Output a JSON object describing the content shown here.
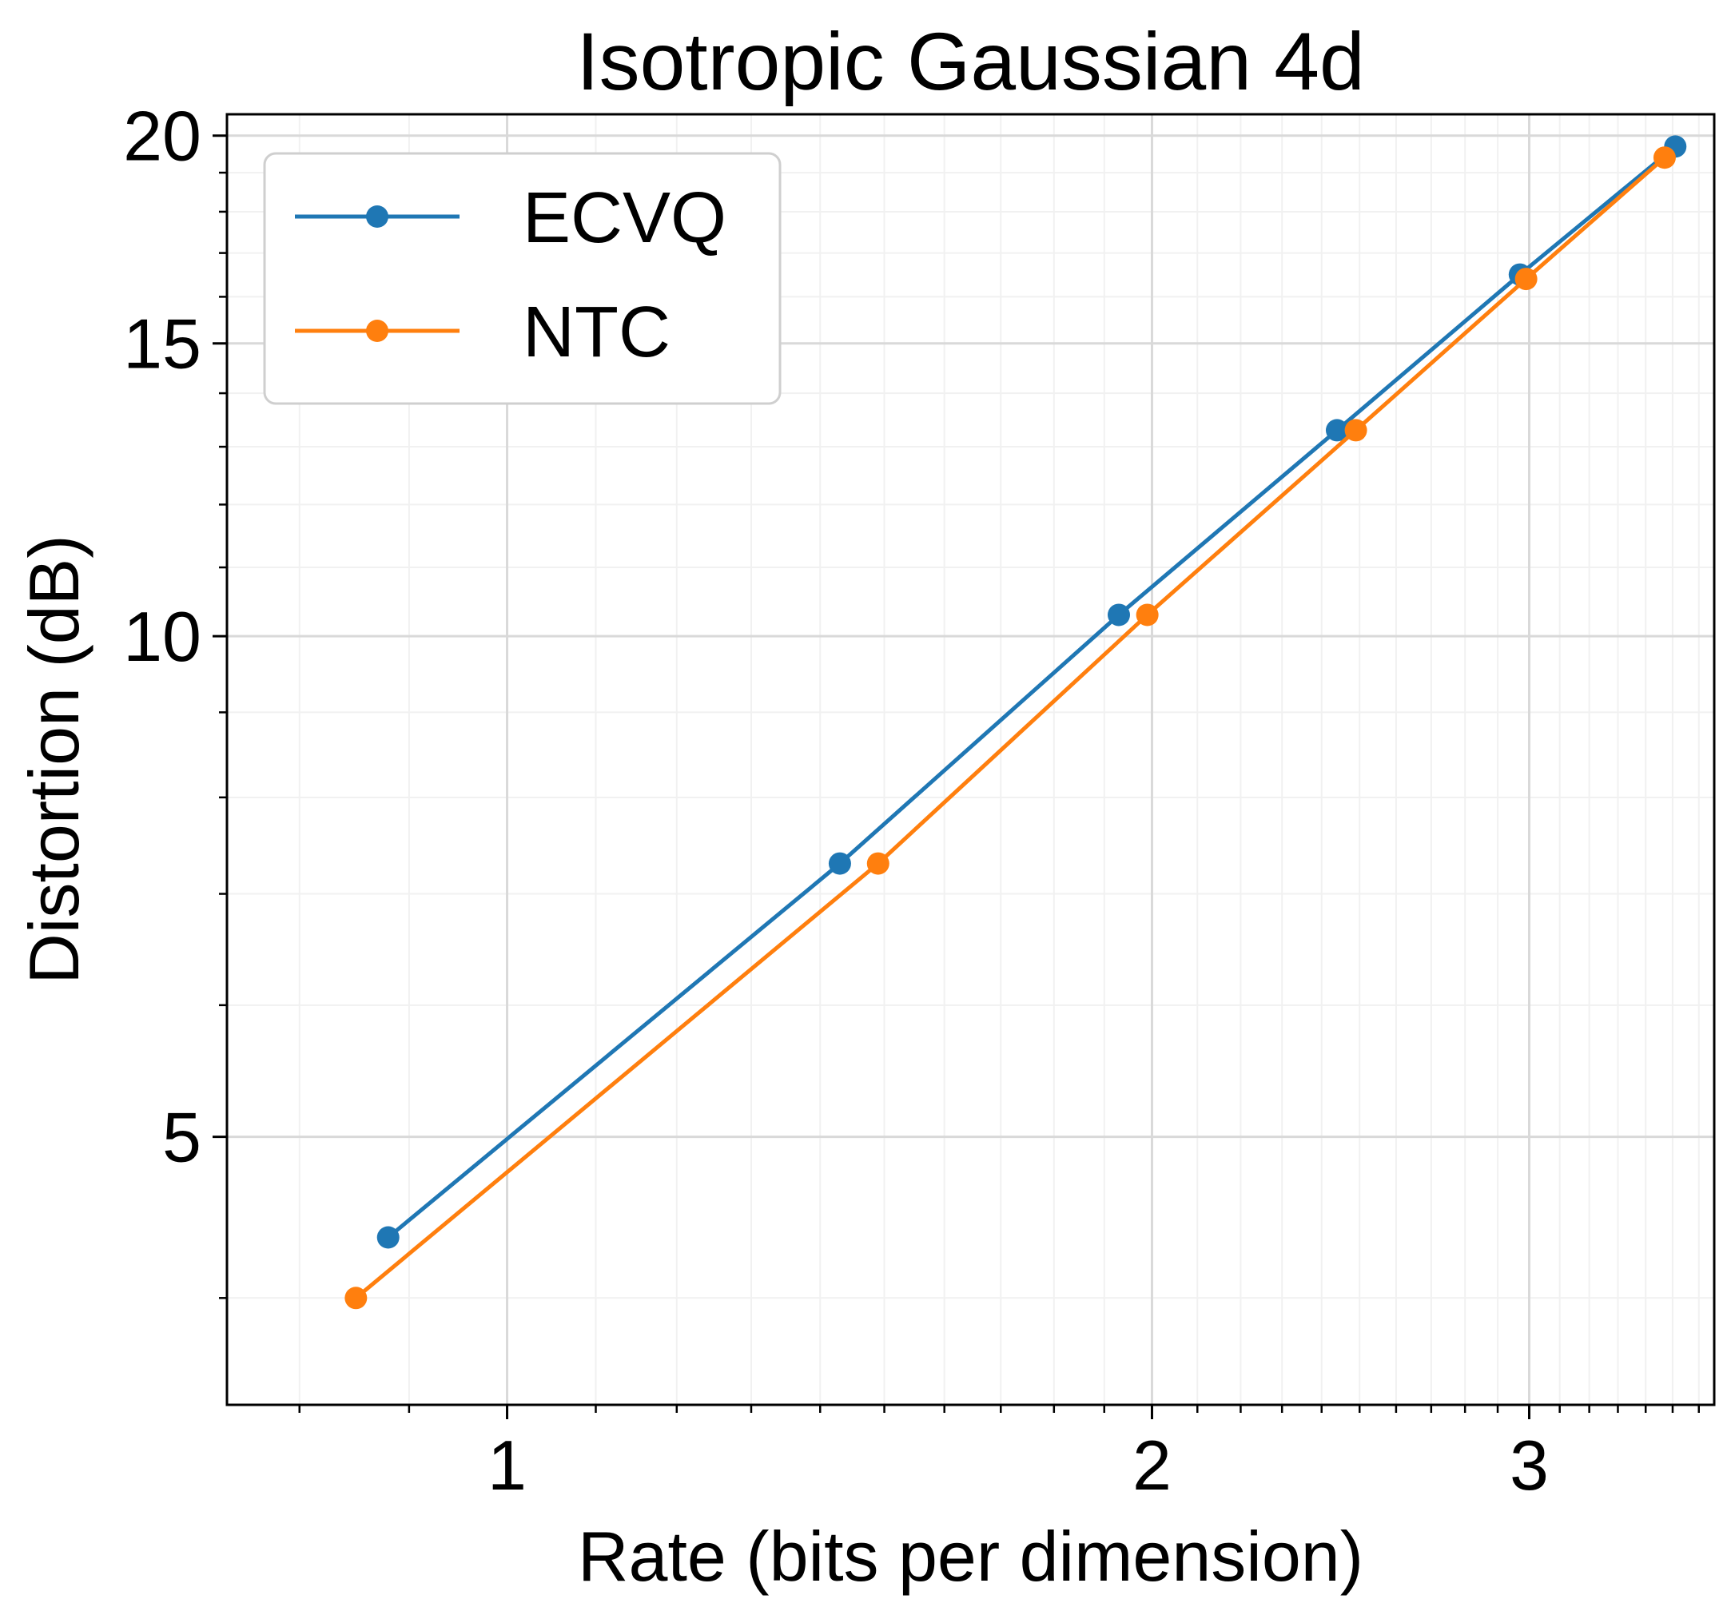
{
  "chart_data": {
    "type": "line",
    "title": "Isotropic Gaussian 4d",
    "xlabel": "Rate (bits per dimension)",
    "ylabel": "Distortion (dB)",
    "xscale": "log",
    "yscale": "log",
    "xlim": [
      0.74,
      3.66
    ],
    "ylim": [
      3.45,
      20.6
    ],
    "xticks": [
      1,
      2,
      3
    ],
    "yticks": [
      5,
      10,
      15,
      20
    ],
    "grid": true,
    "legend_position": "top-left",
    "series": [
      {
        "name": "ECVQ",
        "color": "#1f77b4",
        "x": [
          0.88,
          1.43,
          1.93,
          2.44,
          2.97,
          3.51
        ],
        "y": [
          4.35,
          7.3,
          10.3,
          13.3,
          16.5,
          19.7
        ]
      },
      {
        "name": "NTC",
        "color": "#ff7f0e",
        "x": [
          0.85,
          1.49,
          1.99,
          2.49,
          2.99,
          3.47
        ],
        "y": [
          4.0,
          7.3,
          10.3,
          13.3,
          16.4,
          19.4
        ]
      }
    ]
  }
}
